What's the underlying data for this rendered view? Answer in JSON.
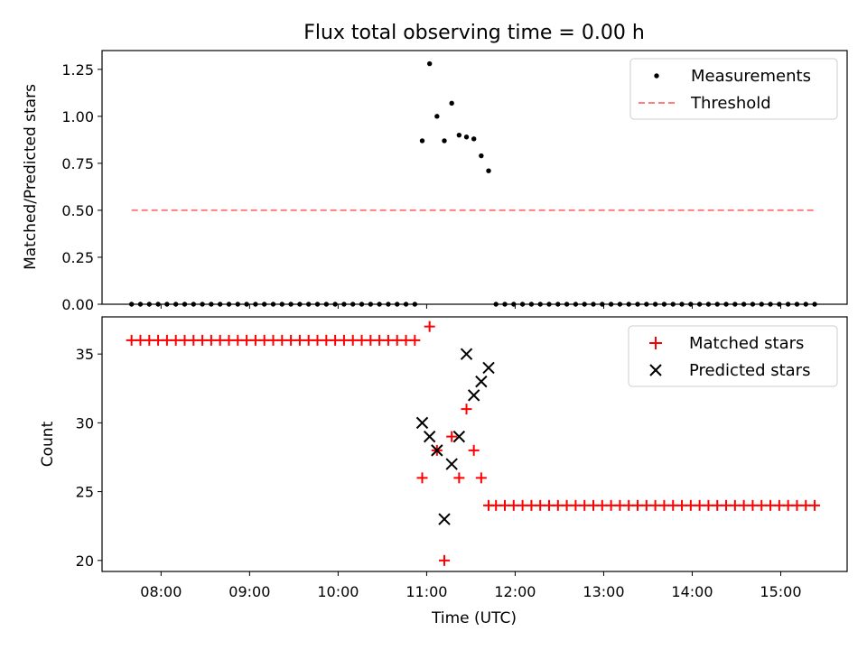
{
  "title": "Flux total observing time = 0.00 h",
  "chart_data": [
    {
      "type": "scatter",
      "ylabel": "Matched/Predicted stars",
      "xlabel": "",
      "ylim": [
        0,
        1.35
      ],
      "yticks": [
        "0.00",
        "0.25",
        "0.50",
        "0.75",
        "1.00",
        "1.25"
      ],
      "legend_position": "top-right",
      "series": [
        {
          "name": "Measurements",
          "marker": "dot",
          "color": "#000000",
          "x": [
            "07:40",
            "07:46",
            "07:52",
            "07:58",
            "08:04",
            "08:10",
            "08:16",
            "08:22",
            "08:28",
            "08:34",
            "08:40",
            "08:46",
            "08:52",
            "08:58",
            "09:04",
            "09:10",
            "09:16",
            "09:22",
            "09:28",
            "09:34",
            "09:40",
            "09:46",
            "09:52",
            "09:58",
            "10:04",
            "10:10",
            "10:16",
            "10:22",
            "10:28",
            "10:34",
            "10:40",
            "10:46",
            "10:52",
            "10:57",
            "11:02",
            "11:07",
            "11:12",
            "11:17",
            "11:22",
            "11:27",
            "11:32",
            "11:37",
            "11:42",
            "11:47",
            "11:53",
            "11:59",
            "12:05",
            "12:11",
            "12:17",
            "12:23",
            "12:29",
            "12:35",
            "12:41",
            "12:47",
            "12:53",
            "12:59",
            "13:05",
            "13:11",
            "13:17",
            "13:23",
            "13:29",
            "13:35",
            "13:41",
            "13:47",
            "13:53",
            "13:59",
            "14:05",
            "14:11",
            "14:17",
            "14:23",
            "14:29",
            "14:35",
            "14:41",
            "14:47",
            "14:53",
            "14:59",
            "15:05",
            "15:11",
            "15:17",
            "15:23"
          ],
          "y": [
            0,
            0,
            0,
            0,
            0,
            0,
            0,
            0,
            0,
            0,
            0,
            0,
            0,
            0,
            0,
            0,
            0,
            0,
            0,
            0,
            0,
            0,
            0,
            0,
            0,
            0,
            0,
            0,
            0,
            0,
            0,
            0,
            0,
            0.87,
            1.28,
            1.0,
            0.87,
            1.07,
            0.9,
            0.89,
            0.88,
            0.79,
            0.71,
            0,
            0,
            0,
            0,
            0,
            0,
            0,
            0,
            0,
            0,
            0,
            0,
            0,
            0,
            0,
            0,
            0,
            0,
            0,
            0,
            0,
            0,
            0,
            0,
            0,
            0,
            0,
            0,
            0,
            0,
            0,
            0,
            0,
            0,
            0,
            0,
            0
          ]
        },
        {
          "name": "Threshold",
          "marker": "dashed-line",
          "color": "#ff7f7f",
          "x": [
            "07:40",
            "15:23"
          ],
          "y": [
            0.5,
            0.5
          ]
        }
      ]
    },
    {
      "type": "scatter",
      "ylabel": "Count",
      "xlabel": "Time (UTC)",
      "ylim": [
        19.2,
        37.7
      ],
      "yticks": [
        "20",
        "25",
        "30",
        "35"
      ],
      "xlim": [
        "07:20",
        "15:45"
      ],
      "xticks": [
        "08:00",
        "09:00",
        "10:00",
        "11:00",
        "12:00",
        "13:00",
        "14:00",
        "15:00"
      ],
      "legend_position": "top-right",
      "series": [
        {
          "name": "Matched stars",
          "marker": "plus",
          "color": "#ff0000",
          "x": [
            "07:40",
            "07:46",
            "07:52",
            "07:58",
            "08:04",
            "08:10",
            "08:16",
            "08:22",
            "08:28",
            "08:34",
            "08:40",
            "08:46",
            "08:52",
            "08:58",
            "09:04",
            "09:10",
            "09:16",
            "09:22",
            "09:28",
            "09:34",
            "09:40",
            "09:46",
            "09:52",
            "09:58",
            "10:04",
            "10:10",
            "10:16",
            "10:22",
            "10:28",
            "10:34",
            "10:40",
            "10:46",
            "10:52",
            "10:57",
            "11:02",
            "11:07",
            "11:12",
            "11:17",
            "11:22",
            "11:27",
            "11:32",
            "11:37",
            "11:42",
            "11:47",
            "11:53",
            "11:59",
            "12:05",
            "12:11",
            "12:17",
            "12:23",
            "12:29",
            "12:35",
            "12:41",
            "12:47",
            "12:53",
            "12:59",
            "13:05",
            "13:11",
            "13:17",
            "13:23",
            "13:29",
            "13:35",
            "13:41",
            "13:47",
            "13:53",
            "13:59",
            "14:05",
            "14:11",
            "14:17",
            "14:23",
            "14:29",
            "14:35",
            "14:41",
            "14:47",
            "14:53",
            "14:59",
            "15:05",
            "15:11",
            "15:17",
            "15:23"
          ],
          "y": [
            36,
            36,
            36,
            36,
            36,
            36,
            36,
            36,
            36,
            36,
            36,
            36,
            36,
            36,
            36,
            36,
            36,
            36,
            36,
            36,
            36,
            36,
            36,
            36,
            36,
            36,
            36,
            36,
            36,
            36,
            36,
            36,
            36,
            26,
            37,
            28,
            20,
            29,
            26,
            31,
            28,
            26,
            24,
            24,
            24,
            24,
            24,
            24,
            24,
            24,
            24,
            24,
            24,
            24,
            24,
            24,
            24,
            24,
            24,
            24,
            24,
            24,
            24,
            24,
            24,
            24,
            24,
            24,
            24,
            24,
            24,
            24,
            24,
            24,
            24,
            24,
            24,
            24,
            24,
            24
          ]
        },
        {
          "name": "Predicted stars",
          "marker": "x",
          "color": "#000000",
          "x": [
            "10:57",
            "11:02",
            "11:07",
            "11:12",
            "11:17",
            "11:22",
            "11:27",
            "11:32",
            "11:37",
            "11:42"
          ],
          "y": [
            30,
            29,
            28,
            23,
            27,
            29,
            35,
            32,
            33,
            34
          ]
        }
      ]
    }
  ]
}
